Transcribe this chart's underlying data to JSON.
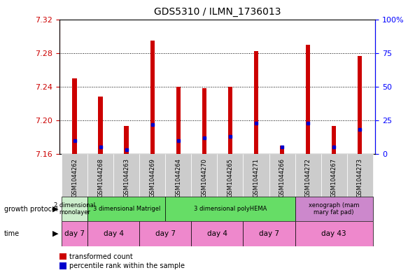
{
  "title": "GDS5310 / ILMN_1736013",
  "samples": [
    "GSM1044262",
    "GSM1044268",
    "GSM1044263",
    "GSM1044269",
    "GSM1044264",
    "GSM1044270",
    "GSM1044265",
    "GSM1044271",
    "GSM1044266",
    "GSM1044272",
    "GSM1044267",
    "GSM1044273"
  ],
  "transformed_counts": [
    7.25,
    7.228,
    7.193,
    7.295,
    7.24,
    7.238,
    7.24,
    7.282,
    7.17,
    7.29,
    7.193,
    7.276
  ],
  "percentile_ranks": [
    10,
    5,
    3,
    22,
    10,
    12,
    13,
    23,
    5,
    23,
    5,
    18
  ],
  "y_min": 7.16,
  "y_max": 7.32,
  "y_ticks": [
    7.16,
    7.2,
    7.24,
    7.28,
    7.32
  ],
  "y2_ticks": [
    0,
    25,
    50,
    75,
    100
  ],
  "bar_color": "#cc0000",
  "dot_color": "#0000cc",
  "growth_protocol_groups": [
    {
      "label": "2 dimensional\nmonolayer",
      "start": 0,
      "end": 1,
      "color": "#cceecc"
    },
    {
      "label": "3 dimensional Matrigel",
      "start": 1,
      "end": 4,
      "color": "#66dd66"
    },
    {
      "label": "3 dimensional polyHEMA",
      "start": 4,
      "end": 9,
      "color": "#66dd66"
    },
    {
      "label": "xenograph (mam\nmary fat pad)",
      "start": 9,
      "end": 12,
      "color": "#cc88cc"
    }
  ],
  "time_groups": [
    {
      "label": "day 7",
      "start": 0,
      "end": 1
    },
    {
      "label": "day 4",
      "start": 1,
      "end": 3
    },
    {
      "label": "day 7",
      "start": 3,
      "end": 5
    },
    {
      "label": "day 4",
      "start": 5,
      "end": 7
    },
    {
      "label": "day 7",
      "start": 7,
      "end": 9
    },
    {
      "label": "day 43",
      "start": 9,
      "end": 12
    }
  ],
  "time_color": "#ee88cc",
  "legend_labels": [
    "transformed count",
    "percentile rank within the sample"
  ],
  "legend_colors": [
    "#cc0000",
    "#0000cc"
  ],
  "bar_width": 0.18,
  "ylabel_color": "#cc0000",
  "y2label_color": "#0000ff",
  "xticklabel_bg": "#cccccc"
}
